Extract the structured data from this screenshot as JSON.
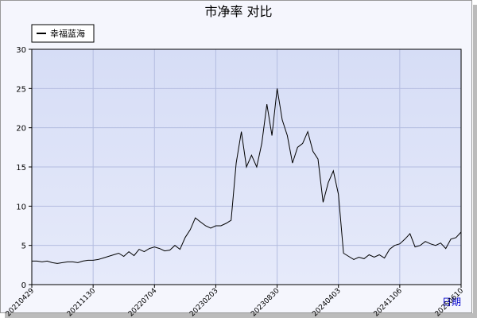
{
  "chart_data": {
    "type": "line",
    "title": "市净率  对比",
    "xlabel": "日期",
    "categories": [
      "20210429",
      null,
      null,
      null,
      null,
      null,
      null,
      null,
      null,
      null,
      null,
      null,
      "20211130",
      null,
      null,
      null,
      null,
      null,
      null,
      null,
      null,
      null,
      null,
      null,
      "20220704",
      null,
      null,
      null,
      null,
      null,
      null,
      null,
      null,
      null,
      null,
      null,
      "20230203",
      null,
      null,
      null,
      null,
      null,
      null,
      null,
      null,
      null,
      null,
      null,
      "20230830",
      null,
      null,
      null,
      null,
      null,
      null,
      null,
      null,
      null,
      null,
      null,
      "20240403",
      null,
      null,
      null,
      null,
      null,
      null,
      null,
      null,
      null,
      null,
      null,
      "20241106",
      null,
      null,
      null,
      null,
      null,
      null,
      null,
      null,
      null,
      null,
      null,
      "20250610"
    ],
    "series": [
      {
        "name": "幸福蓝海",
        "color": "#000000",
        "values": [
          3.0,
          3.0,
          2.9,
          3.0,
          2.8,
          2.7,
          2.8,
          2.9,
          2.9,
          2.8,
          3.0,
          3.1,
          3.1,
          3.2,
          3.4,
          3.6,
          3.8,
          4.0,
          3.6,
          4.2,
          3.7,
          4.5,
          4.2,
          4.6,
          4.8,
          4.6,
          4.3,
          4.4,
          5.0,
          4.5,
          6.0,
          7.0,
          8.5,
          8.0,
          7.5,
          7.2,
          7.5,
          7.5,
          7.8,
          8.2,
          15.5,
          19.5,
          15.0,
          16.5,
          15.0,
          18.0,
          23.0,
          19.0,
          25.0,
          21.0,
          19.0,
          15.5,
          17.5,
          18.0,
          19.5,
          17.0,
          16.0,
          10.5,
          13.0,
          14.5,
          11.5,
          4.0,
          3.6,
          3.2,
          3.5,
          3.3,
          3.8,
          3.5,
          3.8,
          3.4,
          4.5,
          5.0,
          5.2,
          5.8,
          6.5,
          4.8,
          5.0,
          5.5,
          5.2,
          5.0,
          5.3,
          4.6,
          5.8,
          6.0,
          6.7
        ]
      }
    ],
    "ylim": [
      0,
      30
    ],
    "yticks": [
      0,
      5,
      10,
      15,
      20,
      25,
      30
    ],
    "grid": true,
    "legend": "top-left"
  }
}
